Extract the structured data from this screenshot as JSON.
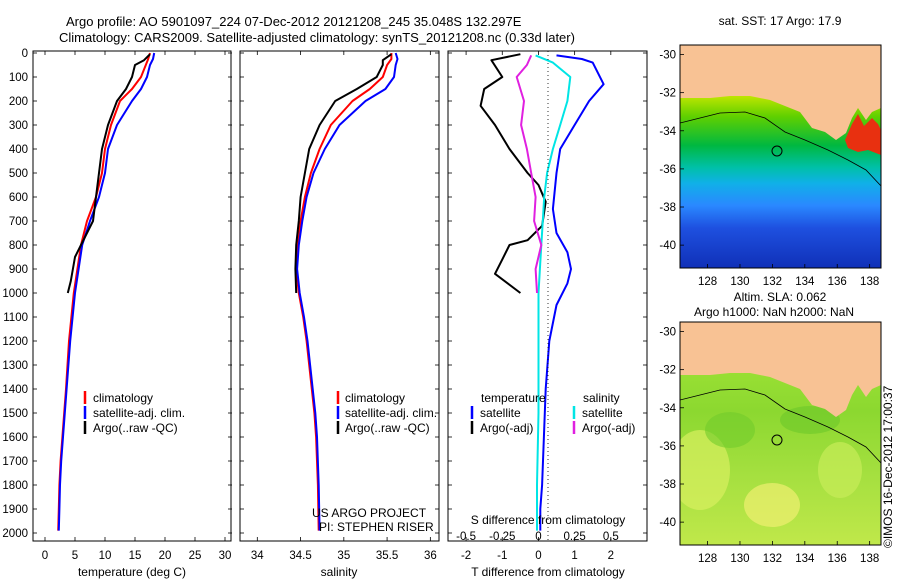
{
  "title": {
    "line1": "Argo profile: AO 5901097_224 07-Dec-2012 20121208_245 35.048S 132.297E",
    "line2": "Climatology: CARS2009. Satellite-adjusted climatology: synTS_20121208.nc (0.33d later)"
  },
  "colors": {
    "climatology": "#ff0000",
    "satellite": "#0000ff",
    "argo": "#000000",
    "salinity_satellite": "#00e5e5",
    "salinity_argo": "#e020e0",
    "land": "#f8c294"
  },
  "depth_axis": {
    "ticks": [
      "0",
      "100",
      "200",
      "300",
      "400",
      "500",
      "600",
      "700",
      "800",
      "900",
      "1000",
      "1100",
      "1200",
      "1300",
      "1400",
      "1500",
      "1600",
      "1700",
      "1800",
      "1900",
      "2000"
    ],
    "range": [
      0,
      2000
    ],
    "reversed": true
  },
  "chart_data": [
    {
      "type": "line",
      "id": "temperature",
      "xlabel": "temperature (deg C)",
      "xticks": [
        "0",
        "5",
        "10",
        "15",
        "20",
        "25",
        "30"
      ],
      "xlim": [
        -2,
        31
      ],
      "ylim": [
        2000,
        0
      ],
      "legend": [
        "climatology",
        "satellite-adj. clim.",
        "Argo(..raw -QC)"
      ],
      "series": [
        {
          "name": "climatology",
          "x": [
            17.5,
            17.2,
            16.8,
            16.0,
            14.5,
            12.5,
            11.0,
            10.0,
            9.5,
            8.5,
            7.0,
            6.0,
            4.8,
            4.0,
            3.5,
            3.2,
            2.9,
            2.6,
            2.4,
            2.3,
            2.2
          ],
          "y": [
            0,
            25,
            50,
            100,
            150,
            200,
            300,
            400,
            500,
            600,
            700,
            800,
            1000,
            1200,
            1400,
            1500,
            1600,
            1700,
            1800,
            1900,
            1990
          ]
        },
        {
          "name": "satellite-adj. clim.",
          "x": [
            18.2,
            18.0,
            17.5,
            17.0,
            16.0,
            14.5,
            12.0,
            10.5,
            10.0,
            9.0,
            7.5,
            6.2,
            5.0,
            4.2,
            3.6,
            3.3,
            3.0,
            2.7,
            2.5,
            2.4,
            2.3
          ],
          "y": [
            0,
            25,
            50,
            100,
            150,
            200,
            300,
            400,
            500,
            600,
            700,
            800,
            1000,
            1200,
            1400,
            1500,
            1600,
            1700,
            1800,
            1900,
            1990
          ]
        },
        {
          "name": "Argo(..raw -QC)",
          "x": [
            17.5,
            16.5,
            15.0,
            14.5,
            13.5,
            12.0,
            10.5,
            9.5,
            9.0,
            8.5,
            8.0,
            7.0,
            6.0,
            5.0,
            4.3,
            3.8
          ],
          "y": [
            5,
            30,
            50,
            100,
            150,
            200,
            300,
            400,
            500,
            600,
            700,
            750,
            800,
            850,
            950,
            1000
          ]
        }
      ]
    },
    {
      "type": "line",
      "id": "salinity",
      "xlabel": "salinity",
      "xticks": [
        "34",
        "34.5",
        "35",
        "35.5",
        "36"
      ],
      "xlim": [
        33.8,
        36.1
      ],
      "ylim": [
        2000,
        0
      ],
      "legend": [
        "climatology",
        "satellite-adj. clim.",
        "Argo(..raw -QC)"
      ],
      "credit": [
        "US ARGO PROJECT",
        "PI: STEPHEN RISER"
      ],
      "series": [
        {
          "name": "climatology",
          "x": [
            35.55,
            35.55,
            35.5,
            35.45,
            35.3,
            35.1,
            34.85,
            34.72,
            34.62,
            34.55,
            34.5,
            34.47,
            34.45,
            34.48,
            34.53,
            34.57,
            34.6,
            34.63,
            34.66,
            34.68,
            34.7,
            34.71
          ],
          "y": [
            0,
            25,
            50,
            100,
            150,
            200,
            300,
            400,
            500,
            600,
            700,
            800,
            900,
            1000,
            1100,
            1200,
            1300,
            1400,
            1500,
            1600,
            1800,
            1990
          ]
        },
        {
          "name": "satellite-adj. clim.",
          "x": [
            35.6,
            35.62,
            35.6,
            35.58,
            35.48,
            35.25,
            34.95,
            34.78,
            34.65,
            34.57,
            34.52,
            34.48,
            34.46,
            34.49,
            34.54,
            34.58,
            34.61,
            34.64,
            34.67,
            34.69,
            34.71,
            34.72
          ],
          "y": [
            0,
            25,
            50,
            100,
            150,
            200,
            300,
            400,
            500,
            600,
            700,
            800,
            900,
            1000,
            1100,
            1200,
            1300,
            1400,
            1500,
            1600,
            1800,
            1990
          ]
        },
        {
          "name": "Argo(..raw -QC)",
          "x": [
            35.55,
            35.45,
            35.45,
            35.38,
            35.15,
            34.9,
            34.72,
            34.6,
            34.55,
            34.5,
            34.48,
            34.45,
            34.44,
            34.45
          ],
          "y": [
            5,
            30,
            50,
            100,
            150,
            200,
            300,
            400,
            500,
            600,
            700,
            800,
            900,
            1000
          ]
        }
      ]
    },
    {
      "type": "line",
      "id": "difference",
      "xlabel_top": "S difference from climatology",
      "xlabel": "T difference from climatology",
      "xticks_top": [
        "-0.5",
        "-0.25",
        "0",
        "0.25",
        "0.5"
      ],
      "xticks": [
        "-2",
        "-1",
        "0",
        "1",
        "2"
      ],
      "xlim": [
        -2.5,
        3.0
      ],
      "ylim": [
        2000,
        0
      ],
      "legend_temperature": {
        "title": "temperature",
        "items": [
          "satellite",
          "Argo(-adj)"
        ]
      },
      "legend_salinity": {
        "title": "salinity",
        "items": [
          "satellite",
          "Argo(-adj)"
        ]
      },
      "series": [
        {
          "name": "satellite",
          "group": "temperature",
          "x": [
            0.5,
            1.2,
            1.5,
            1.8,
            1.4,
            1.0,
            0.6,
            0.5,
            0.4,
            0.5,
            0.8,
            0.9,
            0.8,
            0.5,
            0.3,
            0.2,
            0.15,
            0.1,
            0.05,
            0.05
          ],
          "y": [
            10,
            25,
            40,
            130,
            200,
            300,
            400,
            500,
            650,
            750,
            830,
            900,
            960,
            1050,
            1200,
            1400,
            1600,
            1800,
            1900,
            1990
          ]
        },
        {
          "name": "Argo(-adj)",
          "group": "temperature",
          "x": [
            -0.5,
            -1.3,
            -1.0,
            -1.5,
            -1.6,
            -1.2,
            -0.8,
            -0.3,
            0.0,
            0.2,
            0.1,
            -0.3,
            -0.8,
            -1.0,
            -1.2,
            -0.5
          ],
          "y": [
            5,
            30,
            100,
            150,
            220,
            300,
            400,
            500,
            550,
            620,
            720,
            780,
            800,
            860,
            920,
            1000
          ]
        },
        {
          "name": "satellite",
          "group": "salinity",
          "x": [
            -0.02,
            0.1,
            0.22,
            0.2,
            0.15,
            0.1,
            0.06,
            0.04,
            0.03,
            0.02,
            0.01,
            0.0,
            0.0,
            0.0,
            -0.01,
            -0.01
          ],
          "y": [
            10,
            40,
            100,
            200,
            300,
            400,
            500,
            600,
            700,
            800,
            900,
            1000,
            1200,
            1500,
            1800,
            1990
          ]
        },
        {
          "name": "Argo(-adj)",
          "group": "salinity",
          "x": [
            -0.05,
            -0.08,
            -0.15,
            -0.1,
            -0.12,
            -0.08,
            -0.05,
            -0.02,
            -0.03,
            0.02,
            -0.02,
            -0.01
          ],
          "y": [
            10,
            50,
            100,
            200,
            300,
            400,
            500,
            600,
            700,
            800,
            900,
            1000
          ]
        }
      ]
    },
    {
      "type": "heatmap",
      "id": "sst-map",
      "title": "sat. SST: 17 Argo: 17.9",
      "xticks": [
        "128",
        "130",
        "132",
        "134",
        "136",
        "138"
      ],
      "yticks": [
        "-30",
        "-32",
        "-34",
        "-36",
        "-38",
        "-40"
      ],
      "xlim": [
        126.3,
        138.7
      ],
      "ylim": [
        -41.2,
        -29.5
      ],
      "marker": {
        "lon": 132.297,
        "lat": -35.048
      }
    },
    {
      "type": "heatmap",
      "id": "sla-map",
      "title": "Altim. SLA: 0.062",
      "subtitle": "Argo h1000: NaN h2000: NaN",
      "xticks": [
        "128",
        "130",
        "132",
        "134",
        "136",
        "138"
      ],
      "yticks": [
        "-30",
        "-32",
        "-34",
        "-36",
        "-38",
        "-40"
      ],
      "xlim": [
        126.3,
        138.7
      ],
      "ylim": [
        -41.2,
        -29.5
      ],
      "marker": {
        "lon": 132.297,
        "lat": -35.048
      }
    }
  ],
  "side_label": "©IMOS 16-Dec-2012 17:00:37"
}
